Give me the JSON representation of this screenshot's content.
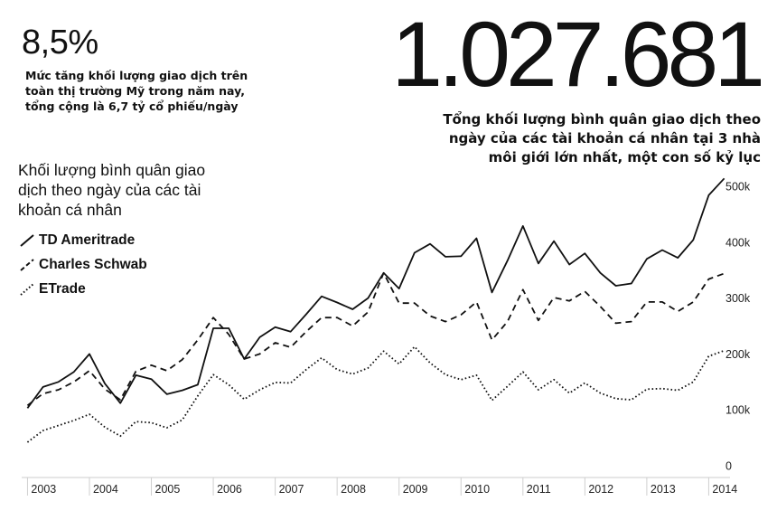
{
  "header": {
    "stat_small": "8,5%",
    "stat_small_desc": "Mức tăng khối lượng giao dịch trên toàn thị trường Mỹ trong năm nay, tổng cộng là 6,7 tỷ cổ phiếu/ngày",
    "stat_big": "1.027.681",
    "stat_big_desc": "Tổng khối lượng bình quân giao dịch theo ngày của các tài khoản cá nhân tại 3 nhà môi giới lớn nhất, một con số kỷ lục"
  },
  "chart_data": {
    "type": "line",
    "title": "Khối lượng bình quân giao dịch theo ngày của các tài khoản cá nhân",
    "xlabel": "",
    "ylabel": "",
    "x_tick_labels": [
      "2003",
      "2004",
      "2005",
      "2006",
      "2007",
      "2008",
      "2009",
      "2010",
      "2011",
      "2012",
      "2013",
      "2014"
    ],
    "y_tick_labels": [
      "0",
      "100k",
      "200k",
      "300k",
      "400k",
      "500k"
    ],
    "ylim": [
      0,
      500000
    ],
    "xlim": [
      2002.95,
      2014.3
    ],
    "grid": false,
    "legend_position": "left",
    "x": [
      2003.0,
      2003.25,
      2003.5,
      2003.75,
      2004.0,
      2004.25,
      2004.5,
      2004.75,
      2005.0,
      2005.25,
      2005.5,
      2005.75,
      2006.0,
      2006.25,
      2006.5,
      2006.75,
      2007.0,
      2007.25,
      2007.5,
      2007.75,
      2008.0,
      2008.25,
      2008.5,
      2008.75,
      2009.0,
      2009.25,
      2009.5,
      2009.75,
      2010.0,
      2010.25,
      2010.5,
      2010.75,
      2011.0,
      2011.25,
      2011.5,
      2011.75,
      2012.0,
      2012.25,
      2012.5,
      2012.75,
      2013.0,
      2013.25,
      2013.5,
      2013.75,
      2014.0,
      2014.25
    ],
    "series": [
      {
        "name": "TD Ameritrade",
        "style": "solid",
        "values": [
          103000,
          141000,
          150000,
          168000,
          200000,
          147000,
          112000,
          162000,
          155000,
          128000,
          135000,
          145000,
          246000,
          246000,
          191000,
          230000,
          248000,
          240000,
          271000,
          303000,
          292000,
          280000,
          300000,
          345000,
          317000,
          381000,
          397000,
          374000,
          375000,
          407000,
          310000,
          367000,
          429000,
          362000,
          402000,
          360000,
          380000,
          345000,
          322000,
          326000,
          370000,
          386000,
          372000,
          404000,
          484000,
          514000
        ]
      },
      {
        "name": "Charles Schwab",
        "style": "dashed",
        "values": [
          108000,
          129000,
          136000,
          150000,
          170000,
          137000,
          118000,
          169000,
          180000,
          170000,
          190000,
          225000,
          265000,
          235000,
          191000,
          200000,
          220000,
          212000,
          240000,
          265000,
          265000,
          250000,
          275000,
          345000,
          291000,
          291000,
          268000,
          258000,
          270000,
          293000,
          225000,
          258000,
          315000,
          260000,
          301000,
          295000,
          312000,
          285000,
          255000,
          258000,
          293000,
          293000,
          276000,
          293000,
          334000,
          344000
        ]
      },
      {
        "name": "ETrade",
        "style": "dotted",
        "values": [
          42000,
          63000,
          72000,
          81000,
          92000,
          69000,
          53000,
          79000,
          77000,
          68000,
          82000,
          125000,
          163000,
          145000,
          119000,
          136000,
          149000,
          148000,
          172000,
          193000,
          172000,
          164000,
          175000,
          205000,
          182000,
          213000,
          184000,
          163000,
          154000,
          162000,
          117000,
          142000,
          168000,
          136000,
          154000,
          130000,
          148000,
          130000,
          120000,
          118000,
          137000,
          138000,
          135000,
          150000,
          196000,
          206000
        ]
      }
    ]
  }
}
